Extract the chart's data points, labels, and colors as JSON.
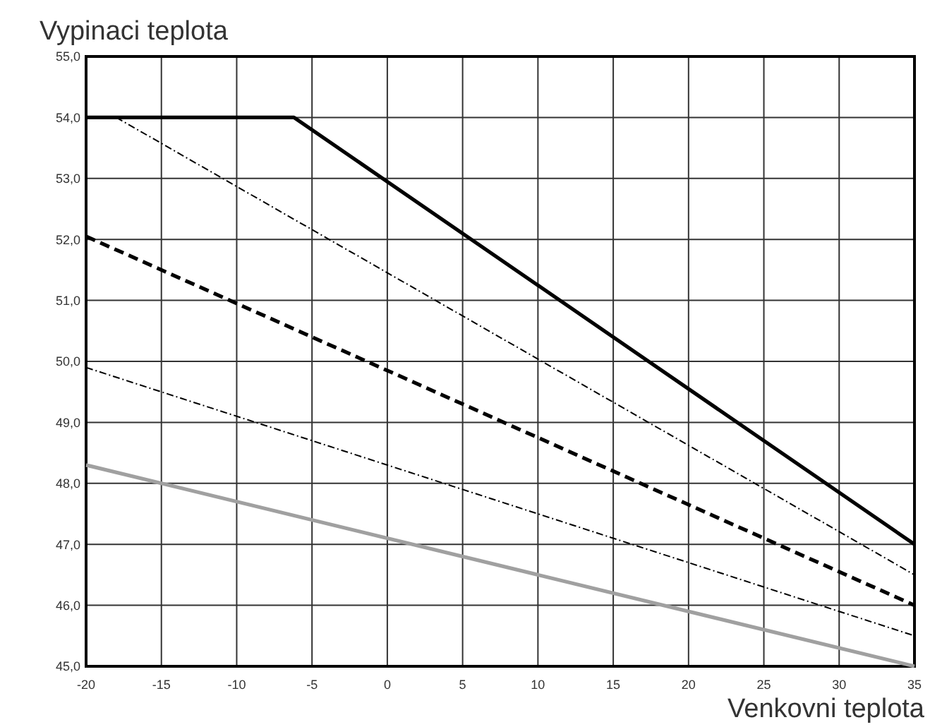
{
  "chart_data": {
    "type": "line",
    "xlabel": "Venkovni teplota",
    "ylabel": "Vypinaci teplota",
    "xlim": [
      -20,
      35
    ],
    "xticks": [
      -20,
      -15,
      -10,
      -5,
      0,
      5,
      10,
      15,
      20,
      25,
      30,
      35
    ],
    "ylim": [
      45,
      55
    ],
    "yticks": [
      {
        "value": 45,
        "label": "45,0"
      },
      {
        "value": 46,
        "label": "46,0"
      },
      {
        "value": 47,
        "label": "47,0"
      },
      {
        "value": 48,
        "label": "48,0"
      },
      {
        "value": 49,
        "label": "49,0"
      },
      {
        "value": 50,
        "label": "50,0"
      },
      {
        "value": 51,
        "label": "51,0"
      },
      {
        "value": 52,
        "label": "52,0"
      },
      {
        "value": 53,
        "label": "53,0"
      },
      {
        "value": 54,
        "label": "54,0"
      },
      {
        "value": 55,
        "label": "55,0"
      }
    ],
    "grid": true,
    "marker": "none",
    "series": [
      {
        "color": "#000000",
        "line_style": "solid",
        "x": [
          -20,
          -6.2,
          35
        ],
        "values": [
          54,
          54,
          47
        ]
      },
      {
        "color": "#000000",
        "line_style": "dashed",
        "x": [
          -18,
          35
        ],
        "values": [
          54,
          46.5
        ]
      },
      {
        "color": "#000000",
        "line_style": "dashed",
        "x": [
          -20,
          35
        ],
        "values": [
          52.05,
          46
        ]
      },
      {
        "color": "#000000",
        "line_style": "dashed",
        "x": [
          -20,
          35
        ],
        "values": [
          49.9,
          45.5
        ]
      },
      {
        "color": "#a0a0a0",
        "line_style": "solid",
        "x": [
          -20,
          35
        ],
        "values": [
          48.3,
          45
        ]
      }
    ]
  }
}
